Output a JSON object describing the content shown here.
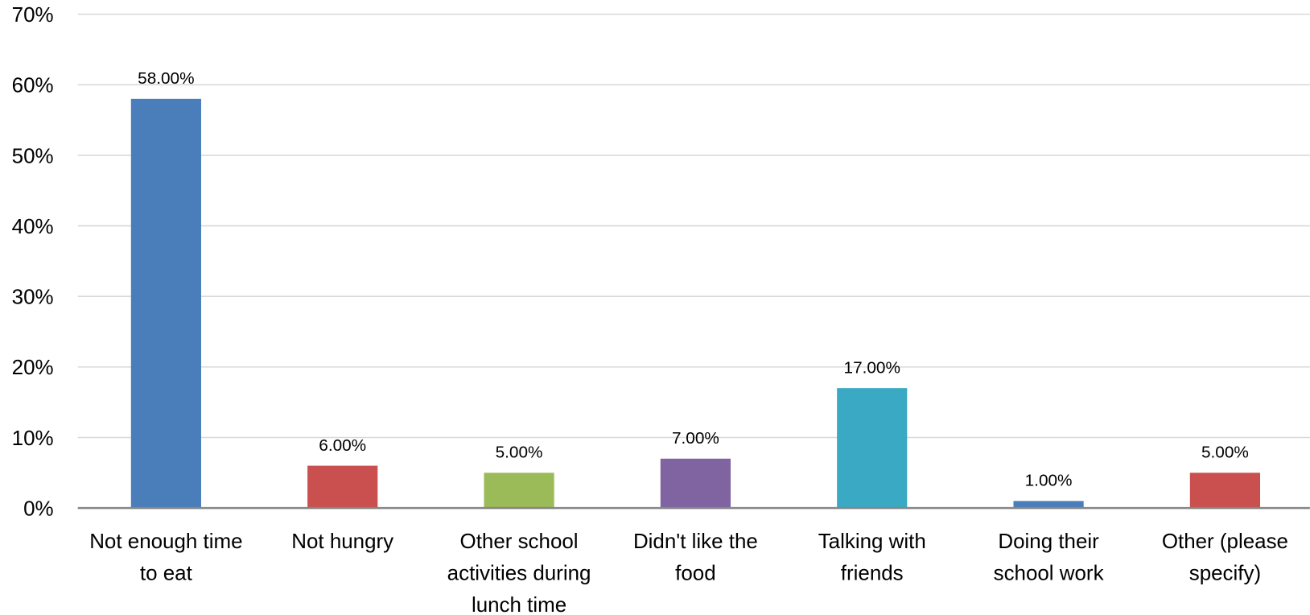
{
  "chart_data": {
    "type": "bar",
    "categories": [
      "Not enough time to eat",
      "Not hungry",
      "Other school activities during lunch time",
      "Didn't like the food",
      "Talking with friends",
      "Doing their school work",
      "Other (please specify)"
    ],
    "values": [
      58,
      6,
      5,
      7,
      17,
      1,
      5
    ],
    "value_labels": [
      "58.00%",
      "6.00%",
      "5.00%",
      "7.00%",
      "17.00%",
      "1.00%",
      "5.00%"
    ],
    "colors": [
      "#4a7ebb",
      "#c9504f",
      "#9bbb59",
      "#8064a2",
      "#3aa9c3",
      "#4a7ebb",
      "#c9504f"
    ],
    "ylim": [
      0,
      70
    ],
    "yticks": [
      {
        "value": 0,
        "label": "0%"
      },
      {
        "value": 10,
        "label": "10%"
      },
      {
        "value": 20,
        "label": "20%"
      },
      {
        "value": 30,
        "label": "30%"
      },
      {
        "value": 40,
        "label": "40%"
      },
      {
        "value": 50,
        "label": "50%"
      },
      {
        "value": 60,
        "label": "60%"
      },
      {
        "value": 70,
        "label": "70%"
      }
    ],
    "grid": true
  }
}
